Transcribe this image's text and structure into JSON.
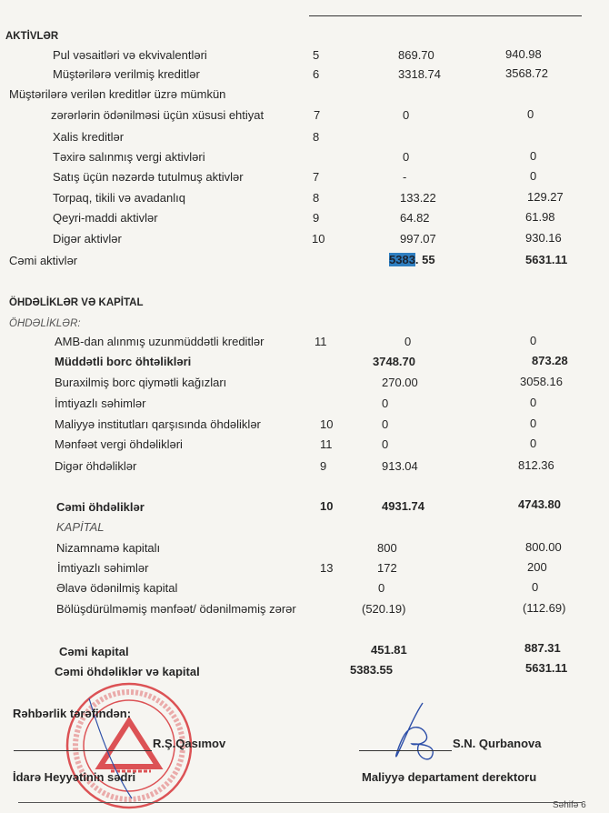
{
  "assets": {
    "heading": "AKTİVLƏR",
    "rows": [
      {
        "label": "Pul vəsaitləri və ekvivalentləri",
        "note": "5",
        "current": "869.70",
        "previous": "940.98"
      },
      {
        "label": "Müştərilərə verilmiş kreditlər",
        "note": "6",
        "current": "3318.74",
        "previous": "3568.72"
      },
      {
        "label": "Müştərilərə verilən kreditlər üzrə mümkün",
        "note": "",
        "current": "",
        "previous": ""
      },
      {
        "label": "zərərlərin  ödənilməsi üçün xüsusi ehtiyat",
        "note": "7",
        "current": "0",
        "previous": "0"
      },
      {
        "label": "Xalis kreditlər",
        "note": "8",
        "current": "",
        "previous": ""
      },
      {
        "label": "Təxirə salınmış vergi aktivləri",
        "note": "",
        "current": "0",
        "previous": "0"
      },
      {
        "label": "Satış üçün nəzərdə tutulmuş aktivlər",
        "note": "7",
        "current": "-",
        "previous": "0"
      },
      {
        "label": "Torpaq, tikili və avadanlıq",
        "note": "8",
        "current": "133.22",
        "previous": "129.27"
      },
      {
        "label": "Qeyri-maddi aktivlər",
        "note": "9",
        "current": "64.82",
        "previous": "61.98"
      },
      {
        "label": "Digər aktivlər",
        "note": "10",
        "current": "997.07",
        "previous": "930.16"
      }
    ],
    "total": {
      "label": "Cəmi aktivlər",
      "current_highlight": "5383",
      "current_rest": ". 55",
      "previous": "5631.11"
    }
  },
  "liabilities_equity": {
    "heading": "ÖHDƏLİKLƏR VƏ KAPİTAL",
    "liabilities_subheading": "ÖHDƏLİKLƏR:",
    "liabilities": [
      {
        "label": "AMB-dan alınmış uzunmüddətli kreditlər",
        "note": "11",
        "current": "0",
        "previous": "0"
      },
      {
        "label": "Müddətli borc öhtəlikləri",
        "note": "",
        "current": "3748.70",
        "previous": "873.28"
      },
      {
        "label": "Buraxilmiş borc qiymətli kağızları",
        "note": "",
        "current": "270.00",
        "previous": "3058.16"
      },
      {
        "label": "İmtiyazlı səhimlər",
        "note": "",
        "current": "0",
        "previous": "0"
      },
      {
        "label": "Maliyyə institutları qarşısında öhdəliklər",
        "note": "10",
        "current": "0",
        "previous": "0"
      },
      {
        "label": "Mənfəət  vergi öhdəlikləri",
        "note": "11",
        "current": "0",
        "previous": "0"
      },
      {
        "label": "Digər öhdəliklər",
        "note": "9",
        "current": "913.04",
        "previous": "812.36"
      }
    ],
    "total_liabilities": {
      "label": "Cəmi öhdəliklər",
      "note": "10",
      "current": "4931.74",
      "previous": "4743.80"
    },
    "equity_subheading": "KAPİTAL",
    "equity": [
      {
        "label": "Nizamnamə  kapitalı",
        "note": "",
        "current": "800",
        "previous": "800.00"
      },
      {
        "label": "İmtiyazlı səhimlər",
        "note": "13",
        "current": "172",
        "previous": "200"
      },
      {
        "label": "Əlavə ödənilmiş kapital",
        "note": "",
        "current": "0",
        "previous": "0"
      },
      {
        "label": "Bölüşdürülməmiş mənfəət/ ödənilməmiş zərər",
        "note": "",
        "current": "(520.19)",
        "previous": "(112.69)"
      }
    ],
    "total_equity": {
      "label": "Cəmi kapital",
      "current": "451.81",
      "previous": "887.31"
    },
    "total_liabilities_equity": {
      "label": "Cəmi öhdəliklər və kapital",
      "current": "5383.55",
      "previous": "5631.11"
    }
  },
  "signatures": {
    "management_label": "Rəhbərlik tərəfindən:",
    "chair_name": "R.Ş.Qasımov",
    "chair_title": "İdarə Heyyətinin sədri",
    "finance_name": "S.N. Qurbanova",
    "finance_title": "Maliyyə departament derektoru",
    "stamp_text": "Azərbaycan Respublikası Finex Kredit Bank Olmayan Kredit Təşkilatı Non-Banking Credit Organization Azerbaijan Republic",
    "stamp_brand": "Finex Kredit"
  },
  "footer": {
    "page_label": "Səhifə  6"
  },
  "colors": {
    "stamp": "#d8363a",
    "signature": "#2d4fa8",
    "highlight": "#2f7fc1"
  }
}
